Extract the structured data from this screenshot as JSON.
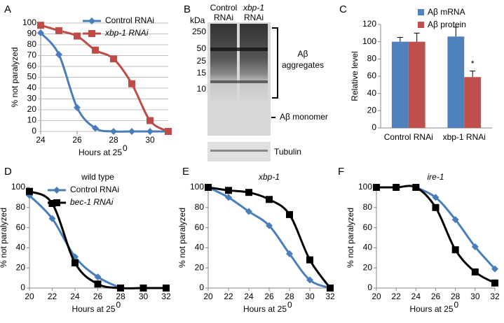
{
  "chart_data": [
    {
      "type": "line",
      "panel": "A",
      "x_label": "Hours at 25",
      "x_label_sup": "0",
      "y_label": "% not paralyzed",
      "xlim": [
        24,
        31
      ],
      "xticks": [
        24,
        26,
        28,
        30
      ],
      "ylim": [
        0,
        100
      ],
      "yticks": [
        0,
        10,
        20,
        30,
        40,
        50,
        60,
        70,
        80,
        90,
        100
      ],
      "grid": true,
      "series": [
        {
          "name": "Control RNAi",
          "color": "#4a7ebb",
          "marker": "diamond",
          "x": [
            24,
            25,
            26,
            27,
            28,
            29,
            30,
            31
          ],
          "values": [
            91,
            71,
            22,
            3,
            0,
            0,
            0,
            0
          ]
        },
        {
          "name": "xbp-1 RNAi",
          "color": "#be4b48",
          "marker": "square",
          "x": [
            24,
            25,
            26,
            27,
            28,
            29,
            30,
            31
          ],
          "values": [
            98,
            93,
            88,
            75,
            67,
            44,
            10,
            0
          ]
        }
      ]
    },
    {
      "type": "bar",
      "panel": "C",
      "y_label": "Relative level",
      "categories": [
        "Control RNAi",
        "xbp-1 RNAi"
      ],
      "ylim": [
        0,
        120
      ],
      "yticks": [
        0,
        20,
        40,
        60,
        80,
        100,
        120
      ],
      "annotation": "*",
      "series": [
        {
          "name": "Aβ mRNA",
          "color": "#4f81bd",
          "values": [
            100,
            106
          ],
          "errors": [
            5,
            11
          ]
        },
        {
          "name": "Aβ protein",
          "color": "#c0504d",
          "values": [
            100,
            59
          ],
          "errors": [
            10,
            7
          ]
        }
      ]
    },
    {
      "type": "line",
      "panel": "D",
      "title": "wild type",
      "x_label": "Hours at 25",
      "x_label_sup": "0",
      "y_label": "% not paralyzed",
      "xlim": [
        20,
        32
      ],
      "xticks": [
        20,
        22,
        24,
        26,
        28,
        30,
        32
      ],
      "ylim": [
        0,
        100
      ],
      "yticks": [
        0,
        20,
        40,
        60,
        80,
        100
      ],
      "grid": false,
      "series": [
        {
          "name": "Control RNAi",
          "color": "#4a7ebb",
          "marker": "diamond",
          "x": [
            20,
            22,
            24,
            26,
            28
          ],
          "values": [
            92,
            69,
            31,
            11,
            0
          ]
        },
        {
          "name": "bec-1 RNAi",
          "color": "#000000",
          "marker": "square",
          "x": [
            20,
            22,
            24,
            26,
            28,
            30,
            32
          ],
          "values": [
            96,
            84,
            25,
            4,
            0,
            0,
            0
          ]
        }
      ]
    },
    {
      "type": "line",
      "panel": "E",
      "title": "xbp-1",
      "x_label": "Hours at 25",
      "x_label_sup": "0",
      "y_label": "% not paralyzed",
      "xlim": [
        20,
        32
      ],
      "xticks": [
        20,
        22,
        24,
        26,
        28,
        30,
        32
      ],
      "ylim": [
        0,
        100
      ],
      "yticks": [
        0,
        20,
        40,
        60,
        80,
        100
      ],
      "grid": false,
      "series": [
        {
          "color": "#4a7ebb",
          "marker": "diamond",
          "x": [
            20,
            22,
            24,
            26,
            28,
            30,
            32
          ],
          "values": [
            100,
            90,
            76,
            62,
            34,
            8,
            0
          ]
        },
        {
          "color": "#000000",
          "marker": "square",
          "x": [
            20,
            22,
            24,
            26,
            28,
            30,
            32
          ],
          "values": [
            100,
            97,
            95,
            88,
            73,
            28,
            0
          ]
        }
      ]
    },
    {
      "type": "line",
      "panel": "F",
      "title": "ire-1",
      "x_label": "Hours at 25",
      "x_label_sup": "0",
      "y_label": "% not paralyzed",
      "xlim": [
        20,
        32
      ],
      "xticks": [
        20,
        22,
        24,
        26,
        28,
        30,
        32
      ],
      "ylim": [
        0,
        100
      ],
      "yticks": [
        0,
        20,
        40,
        60,
        80,
        100
      ],
      "grid": false,
      "series": [
        {
          "color": "#4a7ebb",
          "marker": "diamond",
          "x": [
            24,
            26,
            28,
            30,
            32
          ],
          "values": [
            100,
            90,
            68,
            41,
            19
          ]
        },
        {
          "color": "#000000",
          "marker": "square",
          "x": [
            20,
            22,
            24,
            26,
            28,
            30,
            32
          ],
          "values": [
            100,
            100,
            100,
            80,
            38,
            16,
            5
          ]
        }
      ]
    }
  ],
  "blot": {
    "panel": "B",
    "unit": "kDa",
    "markers": [
      "250",
      "50",
      "25",
      "15",
      "10"
    ],
    "lanes": [
      [
        "Control",
        "RNAi"
      ],
      [
        "xbp-1",
        "RNAi"
      ]
    ],
    "aggregates": [
      "Aβ",
      "aggregates"
    ],
    "monomer": "Aβ monomer",
    "loading": "Tubulin"
  }
}
